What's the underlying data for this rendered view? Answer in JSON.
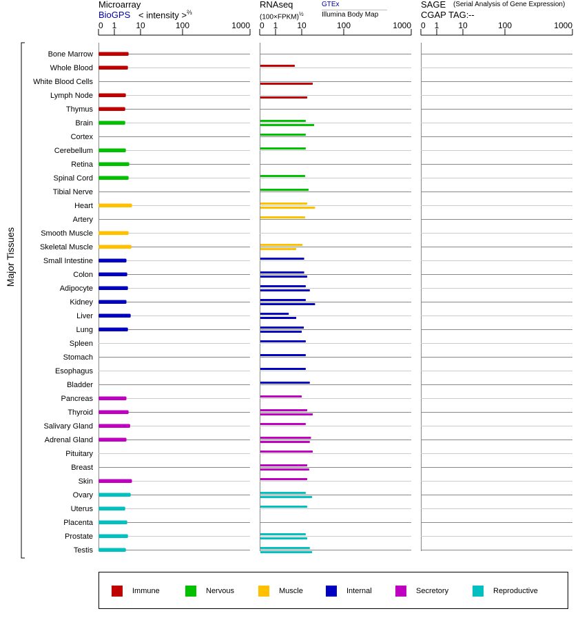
{
  "header": {
    "microarray_title": "Microarray",
    "microarray_source": "BioGPS",
    "microarray_unit": "< intensity >",
    "microarray_exp": "⅔",
    "rnaseq_title": "RNAseq",
    "rnaseq_unit": "(100×FPKM)",
    "rnaseq_exp": "½",
    "rnaseq_source1": "GTEx",
    "rnaseq_source2": "Illumina Body Map",
    "sage_title": "SAGE",
    "sage_subtitle": "(Serial Analysis of Gene Expression)",
    "sage_tag_label": "CGAP TAG:",
    "sage_tag_value": "--"
  },
  "y_group_label": "Major Tissues",
  "legend": [
    {
      "label": "Immune",
      "color": "#c00000"
    },
    {
      "label": "Nervous",
      "color": "#00c000"
    },
    {
      "label": "Muscle",
      "color": "#ffc000"
    },
    {
      "label": "Internal",
      "color": "#0000c0"
    },
    {
      "label": "Secretory",
      "color": "#c000c0"
    },
    {
      "label": "Reproductive",
      "color": "#00c0c0"
    }
  ],
  "chart_data": {
    "type": "bar",
    "orientation": "horizontal",
    "panels": [
      "Microarray",
      "RNAseq",
      "SAGE"
    ],
    "x_ticks": [
      "0",
      "1",
      "10",
      "100",
      "1000"
    ],
    "xlim": [
      0,
      1000
    ],
    "gridlines": true,
    "legend_position": "bottom",
    "series_rnaseq": [
      "GTEx",
      "Illumina Body Map"
    ],
    "tissues": [
      {
        "name": "Bone Marrow",
        "group": 0,
        "microarray": 3.5,
        "gtex": null,
        "ibm": null
      },
      {
        "name": "Whole Blood",
        "group": 0,
        "microarray": 3.3,
        "gtex": 5.1,
        "ibm": null
      },
      {
        "name": "White Blood Cells",
        "group": 0,
        "microarray": null,
        "gtex": null,
        "ibm": 17.6
      },
      {
        "name": "Lymph Node",
        "group": 0,
        "microarray": 2.75,
        "gtex": null,
        "ibm": 13
      },
      {
        "name": "Thymus",
        "group": 0,
        "microarray": 2.6,
        "gtex": null,
        "ibm": null
      },
      {
        "name": "Brain",
        "group": 1,
        "microarray": 2.6,
        "gtex": 12,
        "ibm": 19
      },
      {
        "name": "Cortex",
        "group": 1,
        "microarray": null,
        "gtex": 12,
        "ibm": null
      },
      {
        "name": "Cerebellum",
        "group": 1,
        "microarray": 2.75,
        "gtex": 12,
        "ibm": null
      },
      {
        "name": "Retina",
        "group": 1,
        "microarray": 3.7,
        "gtex": null,
        "ibm": null
      },
      {
        "name": "Spinal Cord",
        "group": 1,
        "microarray": 3.5,
        "gtex": 11.6,
        "ibm": null
      },
      {
        "name": "Tibial Nerve",
        "group": 1,
        "microarray": null,
        "gtex": 14,
        "ibm": null
      },
      {
        "name": "Heart",
        "group": 2,
        "microarray": 4.7,
        "gtex": 13,
        "ibm": 20
      },
      {
        "name": "Artery",
        "group": 2,
        "microarray": null,
        "gtex": 11.6,
        "ibm": null
      },
      {
        "name": "Smooth Muscle",
        "group": 2,
        "microarray": 3.5,
        "gtex": null,
        "ibm": null
      },
      {
        "name": "Skeletal Muscle",
        "group": 2,
        "microarray": 4.5,
        "gtex": 10,
        "ibm": 5.8
      },
      {
        "name": "Small Intestine",
        "group": 3,
        "microarray": 2.9,
        "gtex": 11,
        "ibm": null
      },
      {
        "name": "Colon",
        "group": 3,
        "microarray": 3.1,
        "gtex": 11,
        "ibm": 13
      },
      {
        "name": "Adipocyte",
        "group": 3,
        "microarray": 3.3,
        "gtex": 12,
        "ibm": 15
      },
      {
        "name": "Kidney",
        "group": 3,
        "microarray": 2.9,
        "gtex": 12,
        "ibm": 20
      },
      {
        "name": "Liver",
        "group": 3,
        "microarray": 4.2,
        "gtex": 3,
        "ibm": 5.8
      },
      {
        "name": "Lung",
        "group": 3,
        "microarray": 3.3,
        "gtex": 10.8,
        "ibm": 9.4
      },
      {
        "name": "Spleen",
        "group": 3,
        "microarray": null,
        "gtex": 12,
        "ibm": null
      },
      {
        "name": "Stomach",
        "group": 3,
        "microarray": null,
        "gtex": 12,
        "ibm": null
      },
      {
        "name": "Esophagus",
        "group": 3,
        "microarray": null,
        "gtex": 12,
        "ibm": null
      },
      {
        "name": "Bladder",
        "group": 3,
        "microarray": null,
        "gtex": 15,
        "ibm": null
      },
      {
        "name": "Pancreas",
        "group": 4,
        "microarray": 2.9,
        "gtex": 9.4,
        "ibm": null
      },
      {
        "name": "Thyroid",
        "group": 4,
        "microarray": 3.5,
        "gtex": 13,
        "ibm": 17.6
      },
      {
        "name": "Salivary Gland",
        "group": 4,
        "microarray": 4.0,
        "gtex": 12,
        "ibm": null
      },
      {
        "name": "Adrenal Gland",
        "group": 4,
        "microarray": 2.9,
        "gtex": 16,
        "ibm": 15
      },
      {
        "name": "Pituitary",
        "group": 4,
        "microarray": null,
        "gtex": 17.6,
        "ibm": null
      },
      {
        "name": "Breast",
        "group": 4,
        "microarray": null,
        "gtex": 13,
        "ibm": 14.5
      },
      {
        "name": "Skin",
        "group": 4,
        "microarray": 4.7,
        "gtex": 13,
        "ibm": null
      },
      {
        "name": "Ovary",
        "group": 5,
        "microarray": 4.2,
        "gtex": 12,
        "ibm": 17
      },
      {
        "name": "Uterus",
        "group": 5,
        "microarray": 2.6,
        "gtex": 13,
        "ibm": null
      },
      {
        "name": "Placenta",
        "group": 5,
        "microarray": 3.1,
        "gtex": null,
        "ibm": null
      },
      {
        "name": "Prostate",
        "group": 5,
        "microarray": 3.3,
        "gtex": 12,
        "ibm": 13
      },
      {
        "name": "Testis",
        "group": 5,
        "microarray": 2.75,
        "gtex": 15,
        "ibm": 17
      }
    ]
  }
}
